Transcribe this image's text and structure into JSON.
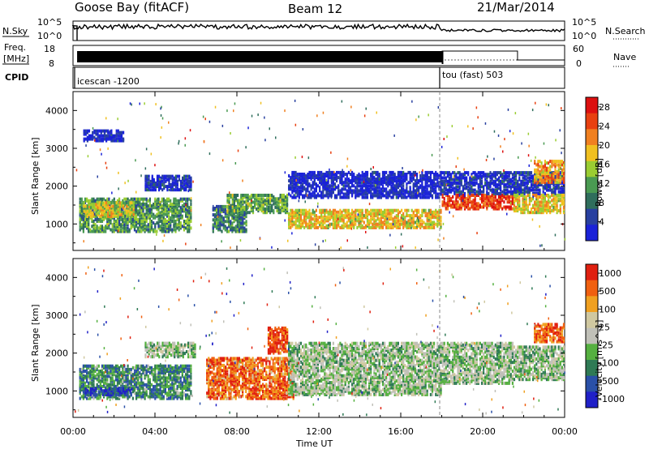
{
  "header": {
    "radar": "Goose Bay (fitACF)",
    "beam": "Beam 12",
    "date": "21/Mar/2014"
  },
  "side_labels": {
    "nsky": "N.Sky",
    "freq_line1": "Freq.",
    "freq_line2": "[MHz]",
    "cpid": "CPID",
    "nsearch": "N.Search",
    "nave": "Nave"
  },
  "nsky_axis": {
    "top": "10^5",
    "bottom": "10^0"
  },
  "freq_axis": {
    "top": "18",
    "bottom": "8"
  },
  "nave_axis": {
    "top": "60",
    "bottom": "0"
  },
  "cpid_segments": [
    {
      "label": "icescan -1200",
      "start_hour": 0
    },
    {
      "label": "tou (fast) 503",
      "start_hour": 18
    }
  ],
  "colors": {
    "power": [
      "#1a22d8",
      "#2840a0",
      "#2f6e5c",
      "#4a9a52",
      "#9acd32",
      "#f0c020",
      "#f08020",
      "#e84010",
      "#dd1010"
    ],
    "velocity": [
      "#2020c8",
      "#2a50a8",
      "#2f7a55",
      "#55b040",
      "#c0c0b8",
      "#d0c8a0",
      "#f0a020",
      "#f06010",
      "#e02010"
    ]
  },
  "chart_data": [
    {
      "type": "heatmap",
      "name": "power-panel",
      "ylabel": "Slant Range [km]",
      "xlim": [
        0,
        24
      ],
      "ylim": [
        300,
        4500
      ],
      "yticks": [
        1000,
        2000,
        3000,
        4000
      ],
      "colorbar": {
        "label": "Power [dB]",
        "ticks": [
          "4",
          "8",
          "12",
          "16",
          "20",
          "24",
          "28"
        ],
        "range": [
          0,
          30
        ]
      },
      "regions": [
        {
          "t": [
            0.3,
            5.8
          ],
          "r": [
            800,
            1700
          ],
          "level": 0.35
        },
        {
          "t": [
            0.5,
            3.0
          ],
          "r": [
            1200,
            1600
          ],
          "level": 0.55
        },
        {
          "t": [
            3.5,
            5.8
          ],
          "r": [
            1900,
            2300
          ],
          "level": 0.1
        },
        {
          "t": [
            6.8,
            8.5
          ],
          "r": [
            800,
            1500
          ],
          "level": 0.3
        },
        {
          "t": [
            7.5,
            10.5
          ],
          "r": [
            1300,
            1800
          ],
          "level": 0.4
        },
        {
          "t": [
            10.5,
            18.0
          ],
          "r": [
            900,
            1400
          ],
          "level": 0.6
        },
        {
          "t": [
            10.5,
            18.0
          ],
          "r": [
            1700,
            2400
          ],
          "level": 0.05
        },
        {
          "t": [
            18.0,
            21.5
          ],
          "r": [
            1400,
            1800
          ],
          "level": 0.85
        },
        {
          "t": [
            18.0,
            24.0
          ],
          "r": [
            1800,
            2400
          ],
          "level": 0.1
        },
        {
          "t": [
            21.5,
            24.0
          ],
          "r": [
            1300,
            1800
          ],
          "level": 0.6
        },
        {
          "t": [
            22.5,
            24.0
          ],
          "r": [
            2100,
            2700
          ],
          "level": 0.7
        },
        {
          "t": [
            0.5,
            2.5
          ],
          "r": [
            3200,
            3500
          ],
          "level": 0.05
        }
      ]
    },
    {
      "type": "heatmap",
      "name": "velocity-panel",
      "ylabel": "Slant Range [km]",
      "xlabel": "Time UT",
      "xlim": [
        0,
        24
      ],
      "ylim": [
        300,
        4500
      ],
      "yticks": [
        1000,
        2000,
        3000,
        4000
      ],
      "xticks": [
        "00:00",
        "04:00",
        "08:00",
        "12:00",
        "16:00",
        "20:00",
        "00:00"
      ],
      "colorbar": {
        "label": "Velocity [m s^-1]",
        "ticks": [
          "1000",
          "500",
          "100",
          "25",
          "-25",
          "-100",
          "-500",
          "-1000"
        ]
      },
      "regions": [
        {
          "t": [
            0.3,
            5.8
          ],
          "r": [
            800,
            1700
          ],
          "level": 0.3
        },
        {
          "t": [
            0.5,
            3.0
          ],
          "r": [
            900,
            1100
          ],
          "level": 0.1
        },
        {
          "t": [
            3.5,
            6.0
          ],
          "r": [
            1900,
            2300
          ],
          "level": 0.45
        },
        {
          "t": [
            6.5,
            10.8
          ],
          "r": [
            800,
            1900
          ],
          "level": 0.82
        },
        {
          "t": [
            9.5,
            10.5
          ],
          "r": [
            2000,
            2700
          ],
          "level": 0.9
        },
        {
          "t": [
            10.5,
            18.0
          ],
          "r": [
            900,
            2300
          ],
          "level": 0.45
        },
        {
          "t": [
            18.0,
            21.5
          ],
          "r": [
            1200,
            2300
          ],
          "level": 0.45
        },
        {
          "t": [
            21.5,
            24.0
          ],
          "r": [
            1300,
            2200
          ],
          "level": 0.45
        },
        {
          "t": [
            22.5,
            24.0
          ],
          "r": [
            2300,
            2800
          ],
          "level": 0.85
        }
      ]
    }
  ]
}
